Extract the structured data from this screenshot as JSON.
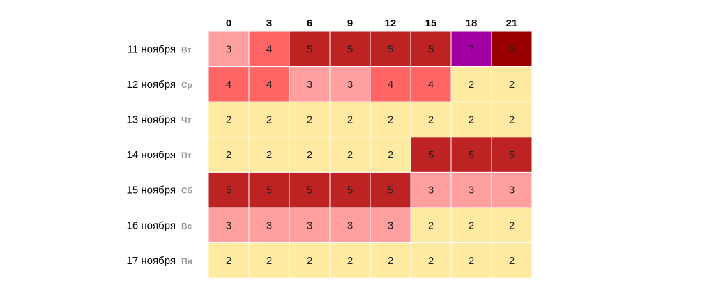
{
  "chart_data": {
    "type": "heatmap",
    "x": [
      "0",
      "3",
      "6",
      "9",
      "12",
      "15",
      "18",
      "21"
    ],
    "rows": [
      {
        "date": "11 ноября",
        "weekday": "Вт",
        "values": [
          3,
          4,
          5,
          5,
          5,
          5,
          7,
          6
        ]
      },
      {
        "date": "12 ноября",
        "weekday": "Ср",
        "values": [
          4,
          4,
          3,
          3,
          4,
          4,
          2,
          2
        ]
      },
      {
        "date": "13 ноября",
        "weekday": "Чт",
        "values": [
          2,
          2,
          2,
          2,
          2,
          2,
          2,
          2
        ]
      },
      {
        "date": "14 ноября",
        "weekday": "Пт",
        "values": [
          2,
          2,
          2,
          2,
          2,
          5,
          5,
          5
        ]
      },
      {
        "date": "15 ноября",
        "weekday": "Сб",
        "values": [
          5,
          5,
          5,
          5,
          5,
          3,
          3,
          3
        ]
      },
      {
        "date": "16 ноября",
        "weekday": "Вс",
        "values": [
          3,
          3,
          3,
          3,
          3,
          2,
          2,
          2
        ]
      },
      {
        "date": "17 ноября",
        "weekday": "Пн",
        "values": [
          2,
          2,
          2,
          2,
          2,
          2,
          2,
          2
        ]
      }
    ],
    "colors": {
      "2": "#ffeaa2",
      "3": "#ff9f9f",
      "4": "#ff6565",
      "5": "#bd2323",
      "6": "#990000",
      "7": "#a300a3"
    },
    "grid_color": "#ffffff",
    "legend": "none"
  }
}
